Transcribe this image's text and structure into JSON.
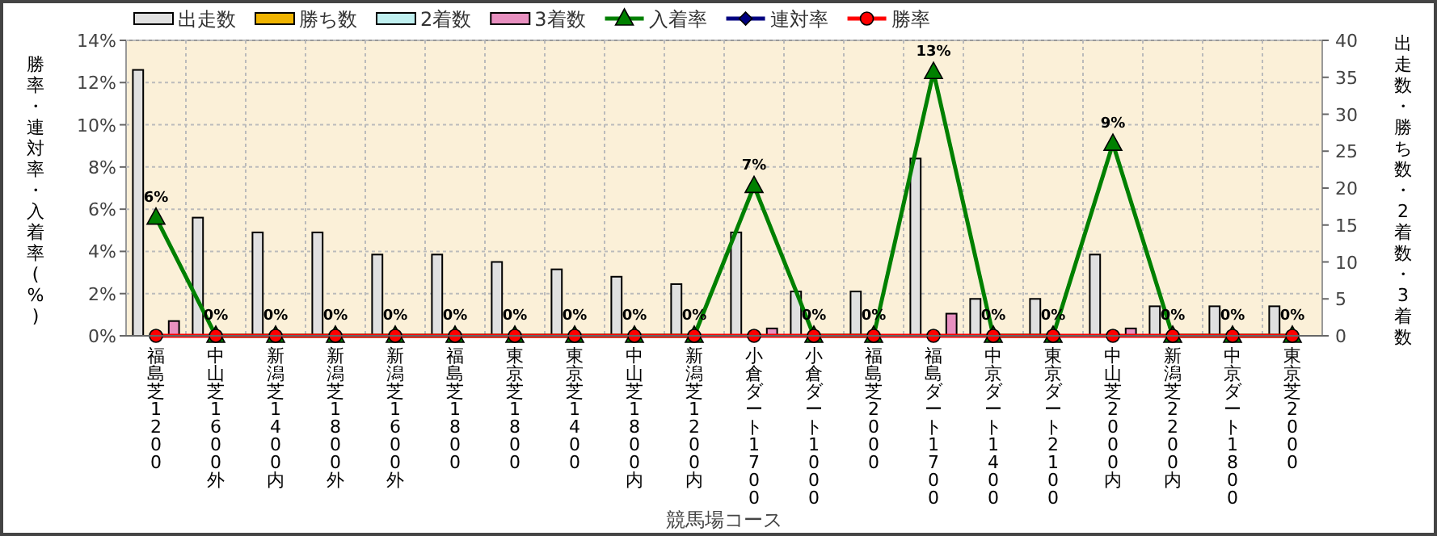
{
  "chart_data": {
    "type": "bar",
    "xlabel": "競馬場コース",
    "ylabel": "勝率・連対率・入着率(%)",
    "y2label": "出走数・勝ち数・2着数・3着数",
    "categories": [
      "福島芝1200",
      "中山芝1600外",
      "新潟芝1400内",
      "新潟芝1800外",
      "新潟芝1600外",
      "福島芝1800",
      "東京芝1800",
      "東京芝1400",
      "中山芝1800内",
      "新潟芝1200内",
      "小倉ダート1700",
      "小倉ダート1000",
      "福島芝2000",
      "福島ダート1700",
      "中京ダート1400",
      "東京ダート2100",
      "中山芝2000内",
      "新潟芝2200内",
      "中京ダート1800",
      "東京芝2000"
    ],
    "series": [
      {
        "name": "出走数",
        "axis": "y2",
        "color": "#e0e0e0",
        "values": [
          36,
          16,
          14,
          14,
          11,
          11,
          10,
          9,
          8,
          7,
          14,
          6,
          6,
          24,
          5,
          5,
          11,
          4,
          4,
          4
        ]
      },
      {
        "name": "勝ち数",
        "axis": "y2",
        "color": "#f0b400",
        "values": [
          0,
          0,
          0,
          0,
          0,
          0,
          0,
          0,
          0,
          0,
          0,
          0,
          0,
          0,
          0,
          0,
          0,
          0,
          0,
          0
        ]
      },
      {
        "name": "2着数",
        "axis": "y2",
        "color": "#c0f0f0",
        "values": [
          0,
          0,
          0,
          0,
          0,
          0,
          0,
          0,
          0,
          0,
          0,
          0,
          0,
          0,
          0,
          0,
          0,
          0,
          0,
          0
        ]
      },
      {
        "name": "3着数",
        "axis": "y2",
        "color": "#e890c0",
        "values": [
          2,
          0,
          0,
          0,
          0,
          0,
          0,
          0,
          0,
          0,
          1,
          0,
          0,
          3,
          0,
          0,
          1,
          0,
          0,
          0
        ]
      },
      {
        "name": "入着率",
        "type": "line",
        "marker": "triangle",
        "color": "#008000",
        "values": [
          5.6,
          0,
          0,
          0,
          0,
          0,
          0,
          0,
          0,
          0,
          7.1,
          0,
          0,
          12.5,
          0,
          0,
          9.1,
          0,
          0,
          0
        ],
        "value_labels": [
          "6%",
          "0%",
          "0%",
          "0%",
          "0%",
          "0%",
          "0%",
          "0%",
          "0%",
          "0%",
          "7%",
          "0%",
          "0%",
          "13%",
          "0%",
          "0%",
          "9%",
          "0%",
          "0%",
          "0%"
        ]
      },
      {
        "name": "連対率",
        "type": "line",
        "marker": "diamond",
        "color": "#000080",
        "values": [
          null,
          null,
          null,
          null,
          null,
          null,
          null,
          null,
          null,
          null,
          null,
          null,
          null,
          null,
          null,
          null,
          null,
          null,
          null,
          null
        ]
      },
      {
        "name": "勝率",
        "type": "line",
        "marker": "circle",
        "color": "#ff0000",
        "values": [
          0,
          0,
          0,
          0,
          0,
          0,
          0,
          0,
          0,
          0,
          0,
          0,
          0,
          0,
          0,
          0,
          0,
          0,
          0,
          0
        ]
      }
    ],
    "ylim": [
      0,
      14
    ],
    "yticks": [
      {
        "value": 0,
        "label": "0%"
      },
      {
        "value": 2,
        "label": "2%"
      },
      {
        "value": 4,
        "label": "4%"
      },
      {
        "value": 6,
        "label": "6%"
      },
      {
        "value": 8,
        "label": "8%"
      },
      {
        "value": 10,
        "label": "10%"
      },
      {
        "value": 12,
        "label": "12%"
      },
      {
        "value": 14,
        "label": "14%"
      }
    ],
    "y2lim": [
      0,
      40
    ],
    "y2ticks": [
      0,
      5,
      10,
      15,
      20,
      25,
      30,
      35,
      40
    ],
    "grid": true,
    "legend": "top"
  }
}
